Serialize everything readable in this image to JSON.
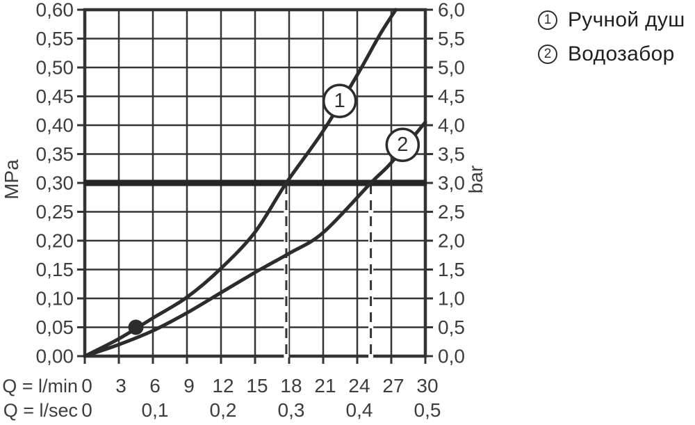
{
  "chart_data": {
    "type": "line",
    "title": "",
    "grid": true,
    "x_axis": {
      "row1_label": "Q = l/min",
      "row1_ticks": [
        "0",
        "3",
        "6",
        "9",
        "12",
        "15",
        "18",
        "21",
        "24",
        "27",
        "30"
      ],
      "row2_label": "Q = l/sec",
      "row2_ticks": [
        "0",
        "0,1",
        "0,2",
        "0,3",
        "0,4",
        "0,5"
      ],
      "range_lmin": [
        0,
        30
      ],
      "step_lmin": 3
    },
    "y_axis_left": {
      "unit_label": "MPa",
      "ticks": [
        "0,60",
        "0,55",
        "0,50",
        "0,45",
        "0,40",
        "0,35",
        "0,30",
        "0,25",
        "0,20",
        "0,15",
        "0,10",
        "0,05",
        "0,00"
      ],
      "range_mpa": [
        0,
        0.6
      ],
      "step_mpa": 0.05
    },
    "y_axis_right": {
      "unit_label": "bar",
      "ticks": [
        "6,0",
        "5,5",
        "5,0",
        "4,5",
        "4,0",
        "3,5",
        "3,0",
        "2,5",
        "2,0",
        "1,5",
        "1,0",
        "0,5",
        "0,0"
      ],
      "range_bar": [
        0,
        6.0
      ],
      "step_bar": 0.5
    },
    "series": [
      {
        "id": "1",
        "name": "Ручной душ",
        "x_lmin": [
          0,
          3,
          6,
          9,
          12,
          15,
          17.75,
          21,
          24,
          26,
          27.4
        ],
        "y_mpa": [
          0,
          0.03,
          0.066,
          0.102,
          0.152,
          0.215,
          0.3,
          0.39,
          0.487,
          0.557,
          0.6
        ],
        "label_pos": {
          "x_lmin": 22.45,
          "y_mpa": 0.442
        }
      },
      {
        "id": "2",
        "name": "Водозабор",
        "x_lmin": [
          0,
          3,
          6,
          9,
          12,
          15,
          18,
          21,
          25.2,
          27,
          30
        ],
        "y_mpa": [
          0,
          0.02,
          0.044,
          0.075,
          0.11,
          0.145,
          0.178,
          0.214,
          0.3,
          0.335,
          0.405
        ],
        "label_pos": {
          "x_lmin": 28.0,
          "y_mpa": 0.366
        }
      }
    ],
    "reference_line": {
      "y_mpa": 0.3,
      "y_bar": 3.0
    },
    "dashed_guides_x_lmin": [
      17.75,
      25.2
    ],
    "point_marker": {
      "x_lmin": 4.5,
      "y_mpa": 0.05
    }
  },
  "legend": {
    "items": [
      {
        "symbol": "1",
        "label": "Ручной душ"
      },
      {
        "symbol": "2",
        "label": "Водозабор"
      }
    ]
  },
  "colors": {
    "background": "#ffffff",
    "ink": "#3d3d3d",
    "grid": "#353535",
    "border": "#333333",
    "curve": "#2c2c2c",
    "reference": "#262626"
  }
}
